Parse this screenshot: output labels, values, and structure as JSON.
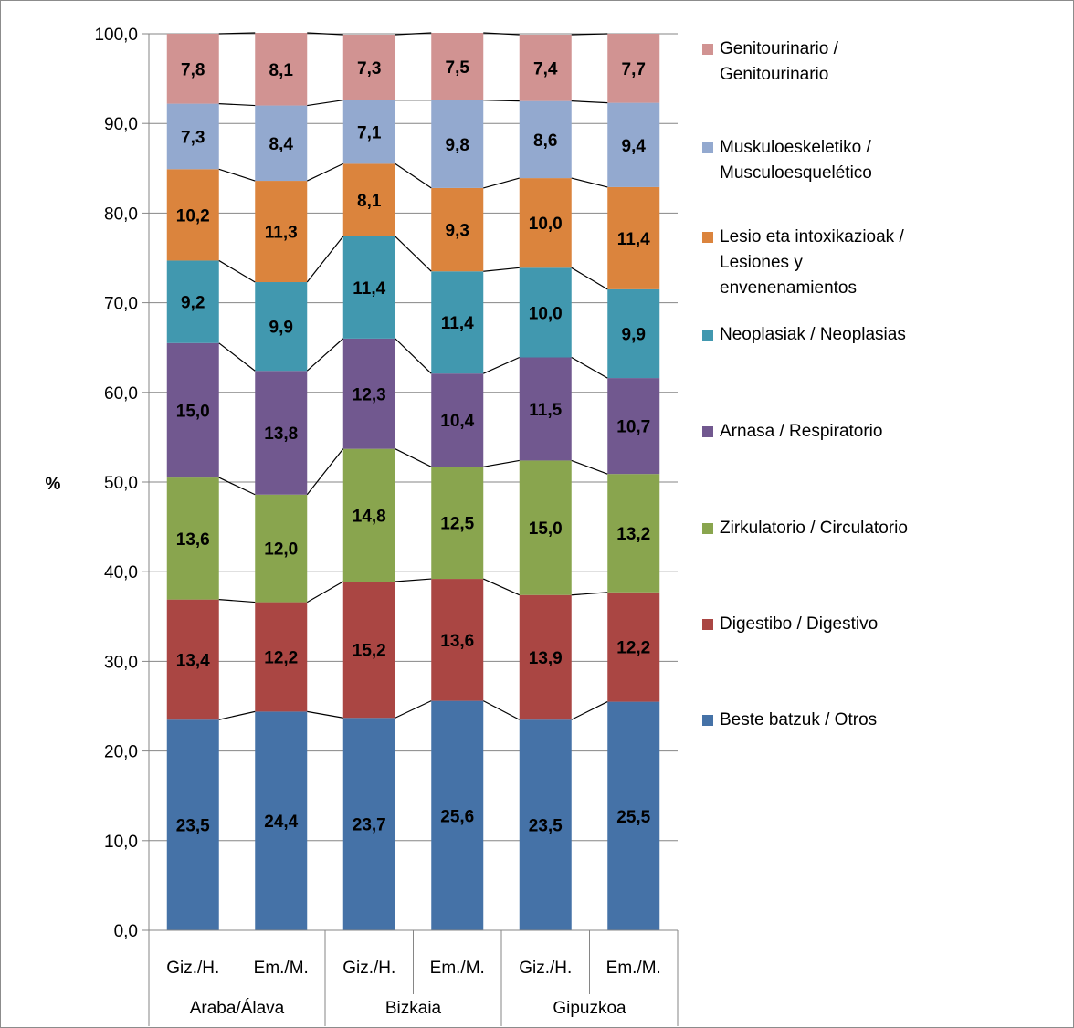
{
  "chart_data": {
    "type": "bar",
    "stacked": true,
    "categories": [
      {
        "label": "Giz./H.",
        "group": "Araba/Álava"
      },
      {
        "label": "Em./M.",
        "group": "Araba/Álava"
      },
      {
        "label": "Giz./H.",
        "group": "Bizkaia"
      },
      {
        "label": "Em./M.",
        "group": "Bizkaia"
      },
      {
        "label": "Giz./H.",
        "group": "Gipuzkoa"
      },
      {
        "label": "Em./M.",
        "group": "Gipuzkoa"
      }
    ],
    "groups": [
      "Araba/Álava",
      "Bizkaia",
      "Gipuzkoa"
    ],
    "series": [
      {
        "name": "Beste batzuk / Otros",
        "color": "#4572a7",
        "values": [
          23.5,
          24.4,
          23.7,
          25.6,
          23.5,
          25.5
        ],
        "labels": [
          "23,5",
          "24,4",
          "23,7",
          "25,6",
          "23,5",
          "25,5"
        ]
      },
      {
        "name": "Digestibo / Digestivo",
        "color": "#aa4643",
        "values": [
          13.4,
          12.2,
          15.2,
          13.6,
          13.9,
          12.2
        ],
        "labels": [
          "13,4",
          "12,2",
          "15,2",
          "13,6",
          "13,9",
          "12,2"
        ]
      },
      {
        "name": "Zirkulatorio / Circulatorio",
        "color": "#89a54e",
        "values": [
          13.6,
          12.0,
          14.8,
          12.5,
          15.0,
          13.2
        ],
        "labels": [
          "13,6",
          "12,0",
          "14,8",
          "12,5",
          "15,0",
          "13,2"
        ]
      },
      {
        "name": "Arnasa / Respiratorio",
        "color": "#71588f",
        "values": [
          15.0,
          13.8,
          12.3,
          10.4,
          11.5,
          10.7
        ],
        "labels": [
          "15,0",
          "13,8",
          "12,3",
          "10,4",
          "11,5",
          "10,7"
        ]
      },
      {
        "name": "Neoplasiak / Neoplasias",
        "color": "#4198af",
        "values": [
          9.2,
          9.9,
          11.4,
          11.4,
          10.0,
          9.9
        ],
        "labels": [
          "9,2",
          "9,9",
          "11,4",
          "11,4",
          "10,0",
          "9,9"
        ]
      },
      {
        "name": "Lesio eta intoxikazioak / Lesiones y envenenamientos",
        "color": "#db843d",
        "values": [
          10.2,
          11.3,
          8.1,
          9.3,
          10.0,
          11.4
        ],
        "labels": [
          "10,2",
          "11,3",
          "8,1",
          "9,3",
          "10,0",
          "11,4"
        ]
      },
      {
        "name": "Muskuloeskeletiko / Musculoesquelético",
        "color": "#93a9cf",
        "values": [
          7.3,
          8.4,
          7.1,
          9.8,
          8.6,
          9.4
        ],
        "labels": [
          "7,3",
          "8,4",
          "7,1",
          "9,8",
          "8,6",
          "9,4"
        ]
      },
      {
        "name": "Genitourinario / Genitourinario",
        "color": "#d19392",
        "values": [
          7.8,
          8.1,
          7.3,
          7.5,
          7.4,
          7.7
        ],
        "labels": [
          "7,8",
          "8,1",
          "7,3",
          "7,5",
          "7,4",
          "7,7"
        ]
      }
    ],
    "legend_labels": [
      [
        "Genitourinario /",
        "Genitourinario"
      ],
      [
        "Muskuloeskeletiko /",
        "Musculoesquelético"
      ],
      [
        "Lesio eta intoxikazioak /",
        "Lesiones y",
        "envenenamientos"
      ],
      [
        "Neoplasiak / Neoplasias"
      ],
      [
        "Arnasa / Respiratorio"
      ],
      [
        "Zirkulatorio / Circulatorio"
      ],
      [
        "Digestibo / Digestivo"
      ],
      [
        "Beste batzuk / Otros"
      ]
    ],
    "ylabel": "%",
    "ylim": [
      0,
      100
    ],
    "yticks": [
      "0,0",
      "10,0",
      "20,0",
      "30,0",
      "40,0",
      "50,0",
      "60,0",
      "70,0",
      "80,0",
      "90,0",
      "100,0"
    ],
    "grid": true,
    "series_lines": true,
    "legend_position": "right"
  }
}
